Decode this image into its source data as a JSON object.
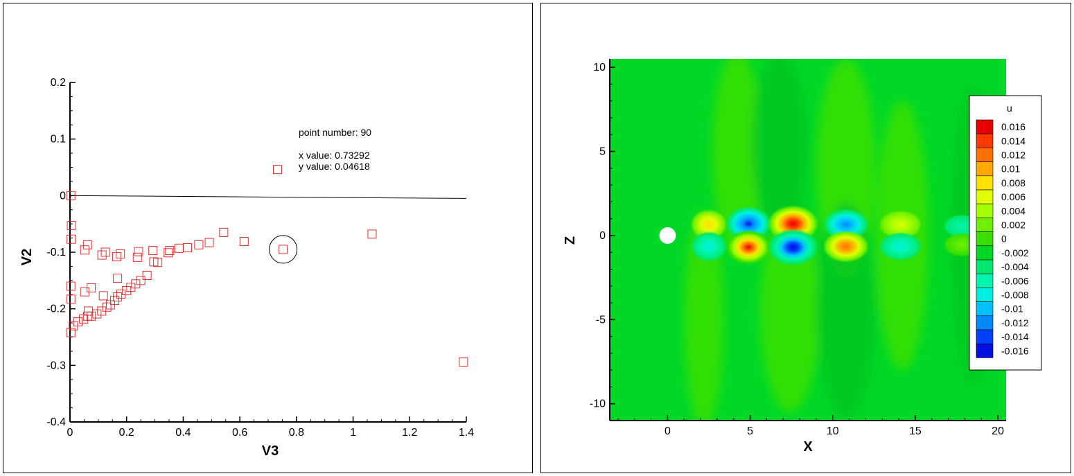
{
  "scatter": {
    "type": "scatter",
    "xlabel": "V3",
    "ylabel": "V2",
    "xlim": [
      0,
      1.4
    ],
    "ylim": [
      -0.4,
      0.2
    ],
    "xticks": [
      "0",
      "0.2",
      "0.4",
      "0.6",
      "0.8",
      "1",
      "1.2",
      "1.4"
    ],
    "yticks": [
      "-0.4",
      "-0.3",
      "-0.2",
      "-0.1",
      "0",
      "0.1",
      "0.2"
    ],
    "marker_color": "#e03030",
    "line_color": "#000000",
    "zero_line": [
      [
        0,
        0
      ],
      [
        1.4,
        -0.005
      ]
    ],
    "points": [
      [
        0.003,
        0.0
      ],
      [
        0.005,
        -0.053
      ],
      [
        0.004,
        -0.077
      ],
      [
        0.003,
        -0.16
      ],
      [
        0.003,
        -0.183
      ],
      [
        0.003,
        -0.242
      ],
      [
        0.012,
        -0.23
      ],
      [
        0.028,
        -0.223
      ],
      [
        0.048,
        -0.218
      ],
      [
        0.062,
        -0.213
      ],
      [
        0.075,
        -0.213
      ],
      [
        0.095,
        -0.209
      ],
      [
        0.112,
        -0.204
      ],
      [
        0.13,
        -0.197
      ],
      [
        0.143,
        -0.193
      ],
      [
        0.158,
        -0.185
      ],
      [
        0.168,
        -0.179
      ],
      [
        0.18,
        -0.174
      ],
      [
        0.2,
        -0.168
      ],
      [
        0.215,
        -0.162
      ],
      [
        0.232,
        -0.156
      ],
      [
        0.25,
        -0.15
      ],
      [
        0.272,
        -0.141
      ],
      [
        0.065,
        -0.204
      ],
      [
        0.052,
        -0.17
      ],
      [
        0.075,
        -0.163
      ],
      [
        0.118,
        -0.177
      ],
      [
        0.168,
        -0.146
      ],
      [
        0.052,
        -0.096
      ],
      [
        0.062,
        -0.087
      ],
      [
        0.113,
        -0.105
      ],
      [
        0.125,
        -0.1
      ],
      [
        0.165,
        -0.108
      ],
      [
        0.178,
        -0.103
      ],
      [
        0.238,
        -0.109
      ],
      [
        0.242,
        -0.099
      ],
      [
        0.293,
        -0.097
      ],
      [
        0.296,
        -0.117
      ],
      [
        0.31,
        -0.118
      ],
      [
        0.347,
        -0.101
      ],
      [
        0.352,
        -0.097
      ],
      [
        0.385,
        -0.093
      ],
      [
        0.415,
        -0.092
      ],
      [
        0.455,
        -0.087
      ],
      [
        0.492,
        -0.083
      ],
      [
        0.543,
        -0.065
      ],
      [
        0.615,
        -0.081
      ],
      [
        0.753,
        -0.095
      ],
      [
        0.73292,
        0.04618
      ],
      [
        1.067,
        -0.068
      ],
      [
        1.39,
        -0.294
      ]
    ],
    "highlight_index": 47,
    "probe": {
      "point_label": "point number: 90",
      "x_label": "x value: 0.73292",
      "y_label": "y value: 0.04618"
    }
  },
  "contour": {
    "type": "heatmap",
    "variable": "u",
    "xlabel": "X",
    "ylabel": "Z",
    "xlim": [
      -3.5,
      20.5
    ],
    "ylim": [
      -11,
      10.5
    ],
    "xticks": [
      "0",
      "5",
      "10",
      "15",
      "20"
    ],
    "yticks": [
      "10",
      "5",
      "0",
      "-5",
      "-10"
    ],
    "cylinder": {
      "x": 0,
      "z": 0,
      "r": 0.5
    },
    "background": "#00d826",
    "legend_title": "u",
    "legend_levels": [
      {
        "label": "0.016",
        "color": "#e60000"
      },
      {
        "label": "0.014",
        "color": "#ff3800"
      },
      {
        "label": "0.012",
        "color": "#ff7100"
      },
      {
        "label": "0.01",
        "color": "#ffa800"
      },
      {
        "label": "0.008",
        "color": "#ffe100"
      },
      {
        "label": "0.006",
        "color": "#e0ff00"
      },
      {
        "label": "0.004",
        "color": "#a8ff00"
      },
      {
        "label": "0.002",
        "color": "#70f000"
      },
      {
        "label": "0",
        "color": "#38e000"
      },
      {
        "label": "-0.002",
        "color": "#00d826"
      },
      {
        "label": "-0.004",
        "color": "#00e870"
      },
      {
        "label": "-0.006",
        "color": "#00f5b0"
      },
      {
        "label": "-0.008",
        "color": "#00f0e0"
      },
      {
        "label": "-0.01",
        "color": "#00c0ff"
      },
      {
        "label": "-0.012",
        "color": "#0088ff"
      },
      {
        "label": "-0.014",
        "color": "#0040ff"
      },
      {
        "label": "-0.016",
        "color": "#0010e0"
      }
    ],
    "bands": [
      {
        "x": 2.2,
        "z": -5.0,
        "rx": 1.2,
        "rz": 6.5,
        "color": "#38e000"
      },
      {
        "x": 4.2,
        "z": 5.0,
        "rx": 1.5,
        "rz": 6.0,
        "color": "#38e000"
      },
      {
        "x": 7.4,
        "z": -4.5,
        "rx": 1.8,
        "rz": 6.0,
        "color": "#38e000"
      },
      {
        "x": 6.8,
        "z": 5.5,
        "rx": 1.7,
        "rz": 5.5,
        "color": "#00c820"
      },
      {
        "x": 10.8,
        "z": 4.0,
        "rx": 1.8,
        "rz": 6.5,
        "color": "#38e000"
      },
      {
        "x": 10.8,
        "z": -4.5,
        "rx": 1.8,
        "rz": 6.5,
        "color": "#00c820"
      },
      {
        "x": 14.2,
        "z": 0.0,
        "rx": 1.6,
        "rz": 8.0,
        "color": "#38e000"
      },
      {
        "x": 18.5,
        "z": 0.0,
        "rx": 1.4,
        "rz": 9.0,
        "color": "#00c820"
      }
    ],
    "blobs": [
      {
        "x": 2.5,
        "z": 0.65,
        "rx": 1.1,
        "rz": 0.9,
        "stops": [
          "#ffe100",
          "#e0ff00",
          "#70f000"
        ]
      },
      {
        "x": 2.5,
        "z": -0.65,
        "rx": 1.1,
        "rz": 0.9,
        "stops": [
          "#00f0e0",
          "#00f5b0",
          "#00e870"
        ]
      },
      {
        "x": 4.9,
        "z": 0.7,
        "rx": 1.4,
        "rz": 1.05,
        "stops": [
          "#0010e0",
          "#0088ff",
          "#00c0ff",
          "#00f0e0",
          "#00e870"
        ]
      },
      {
        "x": 4.9,
        "z": -0.7,
        "rx": 1.4,
        "rz": 1.05,
        "stops": [
          "#e60000",
          "#ff7100",
          "#ffe100",
          "#a8ff00",
          "#38e000"
        ]
      },
      {
        "x": 7.6,
        "z": 0.7,
        "rx": 1.55,
        "rz": 1.1,
        "stops": [
          "#e60000",
          "#ff3800",
          "#ffa800",
          "#e0ff00",
          "#70f000"
        ]
      },
      {
        "x": 7.6,
        "z": -0.7,
        "rx": 1.55,
        "rz": 1.1,
        "stops": [
          "#0010e0",
          "#0040ff",
          "#00c0ff",
          "#00f5b0",
          "#00e870"
        ]
      },
      {
        "x": 10.8,
        "z": 0.65,
        "rx": 1.4,
        "rz": 0.95,
        "stops": [
          "#0088ff",
          "#00c0ff",
          "#00f0e0",
          "#00e870"
        ]
      },
      {
        "x": 10.8,
        "z": -0.65,
        "rx": 1.4,
        "rz": 0.95,
        "stops": [
          "#ff7100",
          "#ffa800",
          "#e0ff00",
          "#70f000"
        ]
      },
      {
        "x": 14.1,
        "z": 0.65,
        "rx": 1.3,
        "rz": 0.85,
        "stops": [
          "#e0ff00",
          "#a8ff00",
          "#70f000"
        ]
      },
      {
        "x": 14.1,
        "z": -0.65,
        "rx": 1.3,
        "rz": 0.85,
        "stops": [
          "#00f0e0",
          "#00f5b0",
          "#00e870"
        ]
      },
      {
        "x": 17.8,
        "z": 0.55,
        "rx": 1.1,
        "rz": 0.7,
        "stops": [
          "#00f5b0",
          "#00e870"
        ]
      },
      {
        "x": 17.8,
        "z": -0.55,
        "rx": 1.1,
        "rz": 0.7,
        "stops": [
          "#70f000",
          "#38e000"
        ]
      }
    ]
  }
}
